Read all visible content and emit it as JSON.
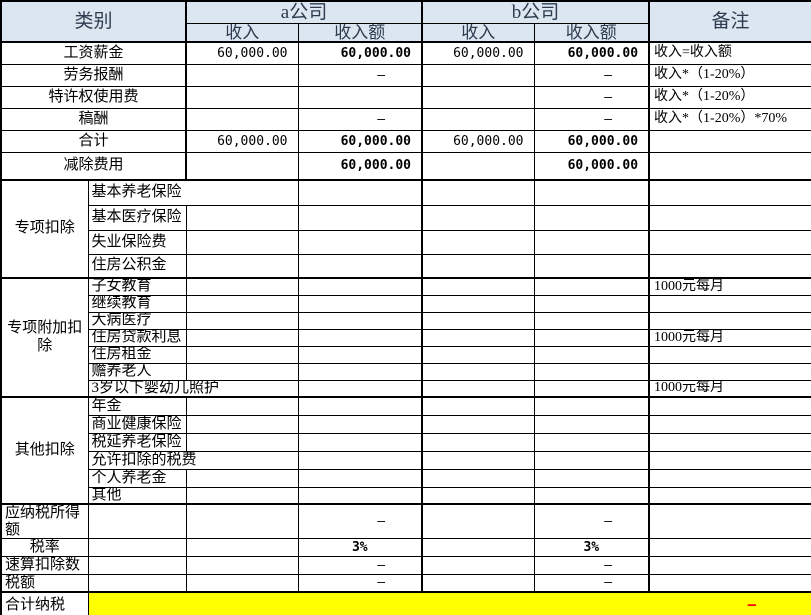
{
  "header": {
    "category": "类别",
    "company_a": "a公司",
    "company_b": "b公司",
    "remark": "备注",
    "income": "收入",
    "income_amount": "收入额"
  },
  "income_rows": [
    {
      "label": "工资薪金",
      "a_income": "60,000.00",
      "a_amount": "60,000.00",
      "b_income": "60,000.00",
      "b_amount": "60,000.00",
      "remark": "收入=收入额"
    },
    {
      "label": "劳务报酬",
      "a_income": "",
      "a_amount": "–",
      "b_income": "",
      "b_amount": "–",
      "remark": "收入*（1-20%）"
    },
    {
      "label": "特许权使用费",
      "a_income": "",
      "a_amount": "",
      "b_income": "",
      "b_amount": "–",
      "remark": "收入*（1-20%）"
    },
    {
      "label": "稿酬",
      "a_income": "",
      "a_amount": "–",
      "b_income": "",
      "b_amount": "–",
      "remark": "收入*（1-20%）*70%"
    },
    {
      "label": "合计",
      "a_income": "60,000.00",
      "a_amount": "60,000.00",
      "b_income": "60,000.00",
      "b_amount": "60,000.00",
      "remark": ""
    },
    {
      "label": "减除费用",
      "a_income": "",
      "a_amount": "60,000.00",
      "b_income": "",
      "b_amount": "60,000.00",
      "remark": ""
    }
  ],
  "deduction_groups": [
    {
      "label": "专项扣除",
      "items": [
        {
          "name": "基本养老保险",
          "overflow": true
        },
        {
          "name": "基本医疗保险"
        },
        {
          "name": "失业保险费"
        },
        {
          "name": "住房公积金"
        }
      ]
    },
    {
      "label": "专项附加扣除",
      "items": [
        {
          "name": "子女教育",
          "remark": "1000元每月"
        },
        {
          "name": "继续教育"
        },
        {
          "name": "大病医疗"
        },
        {
          "name": "住房贷款利息",
          "remark": "1000元每月"
        },
        {
          "name": "住房租金"
        },
        {
          "name": "赡养老人"
        },
        {
          "name": "3岁以下婴幼儿照护",
          "overflow": true,
          "remark": "1000元每月"
        }
      ]
    },
    {
      "label": "其他扣除",
      "items": [
        {
          "name": "年金"
        },
        {
          "name": "商业健康保险"
        },
        {
          "name": "税延养老保险"
        },
        {
          "name": "允许扣除的税费",
          "overflow": true
        },
        {
          "name": "个人养老金"
        },
        {
          "name": "其他"
        }
      ]
    }
  ],
  "tax_rows": [
    {
      "label": "应纳税所得额",
      "a_amount": "–",
      "b_amount": "–"
    },
    {
      "label": "税率",
      "a_amount": "3%",
      "b_amount": "3%",
      "strong": true,
      "center_label": true,
      "center_values": true
    },
    {
      "label": "速算扣除数",
      "a_amount": "–",
      "b_amount": "–"
    },
    {
      "label": "税额",
      "a_amount": "–",
      "b_amount": "–"
    }
  ],
  "total_row": {
    "label": "合计纳税",
    "value": "–"
  },
  "colors": {
    "header_bg": "#dce6f1",
    "header_text": "#2d3b4e",
    "highlight": "#ffff00",
    "negative": "#ff0000",
    "grid": "#000000"
  }
}
